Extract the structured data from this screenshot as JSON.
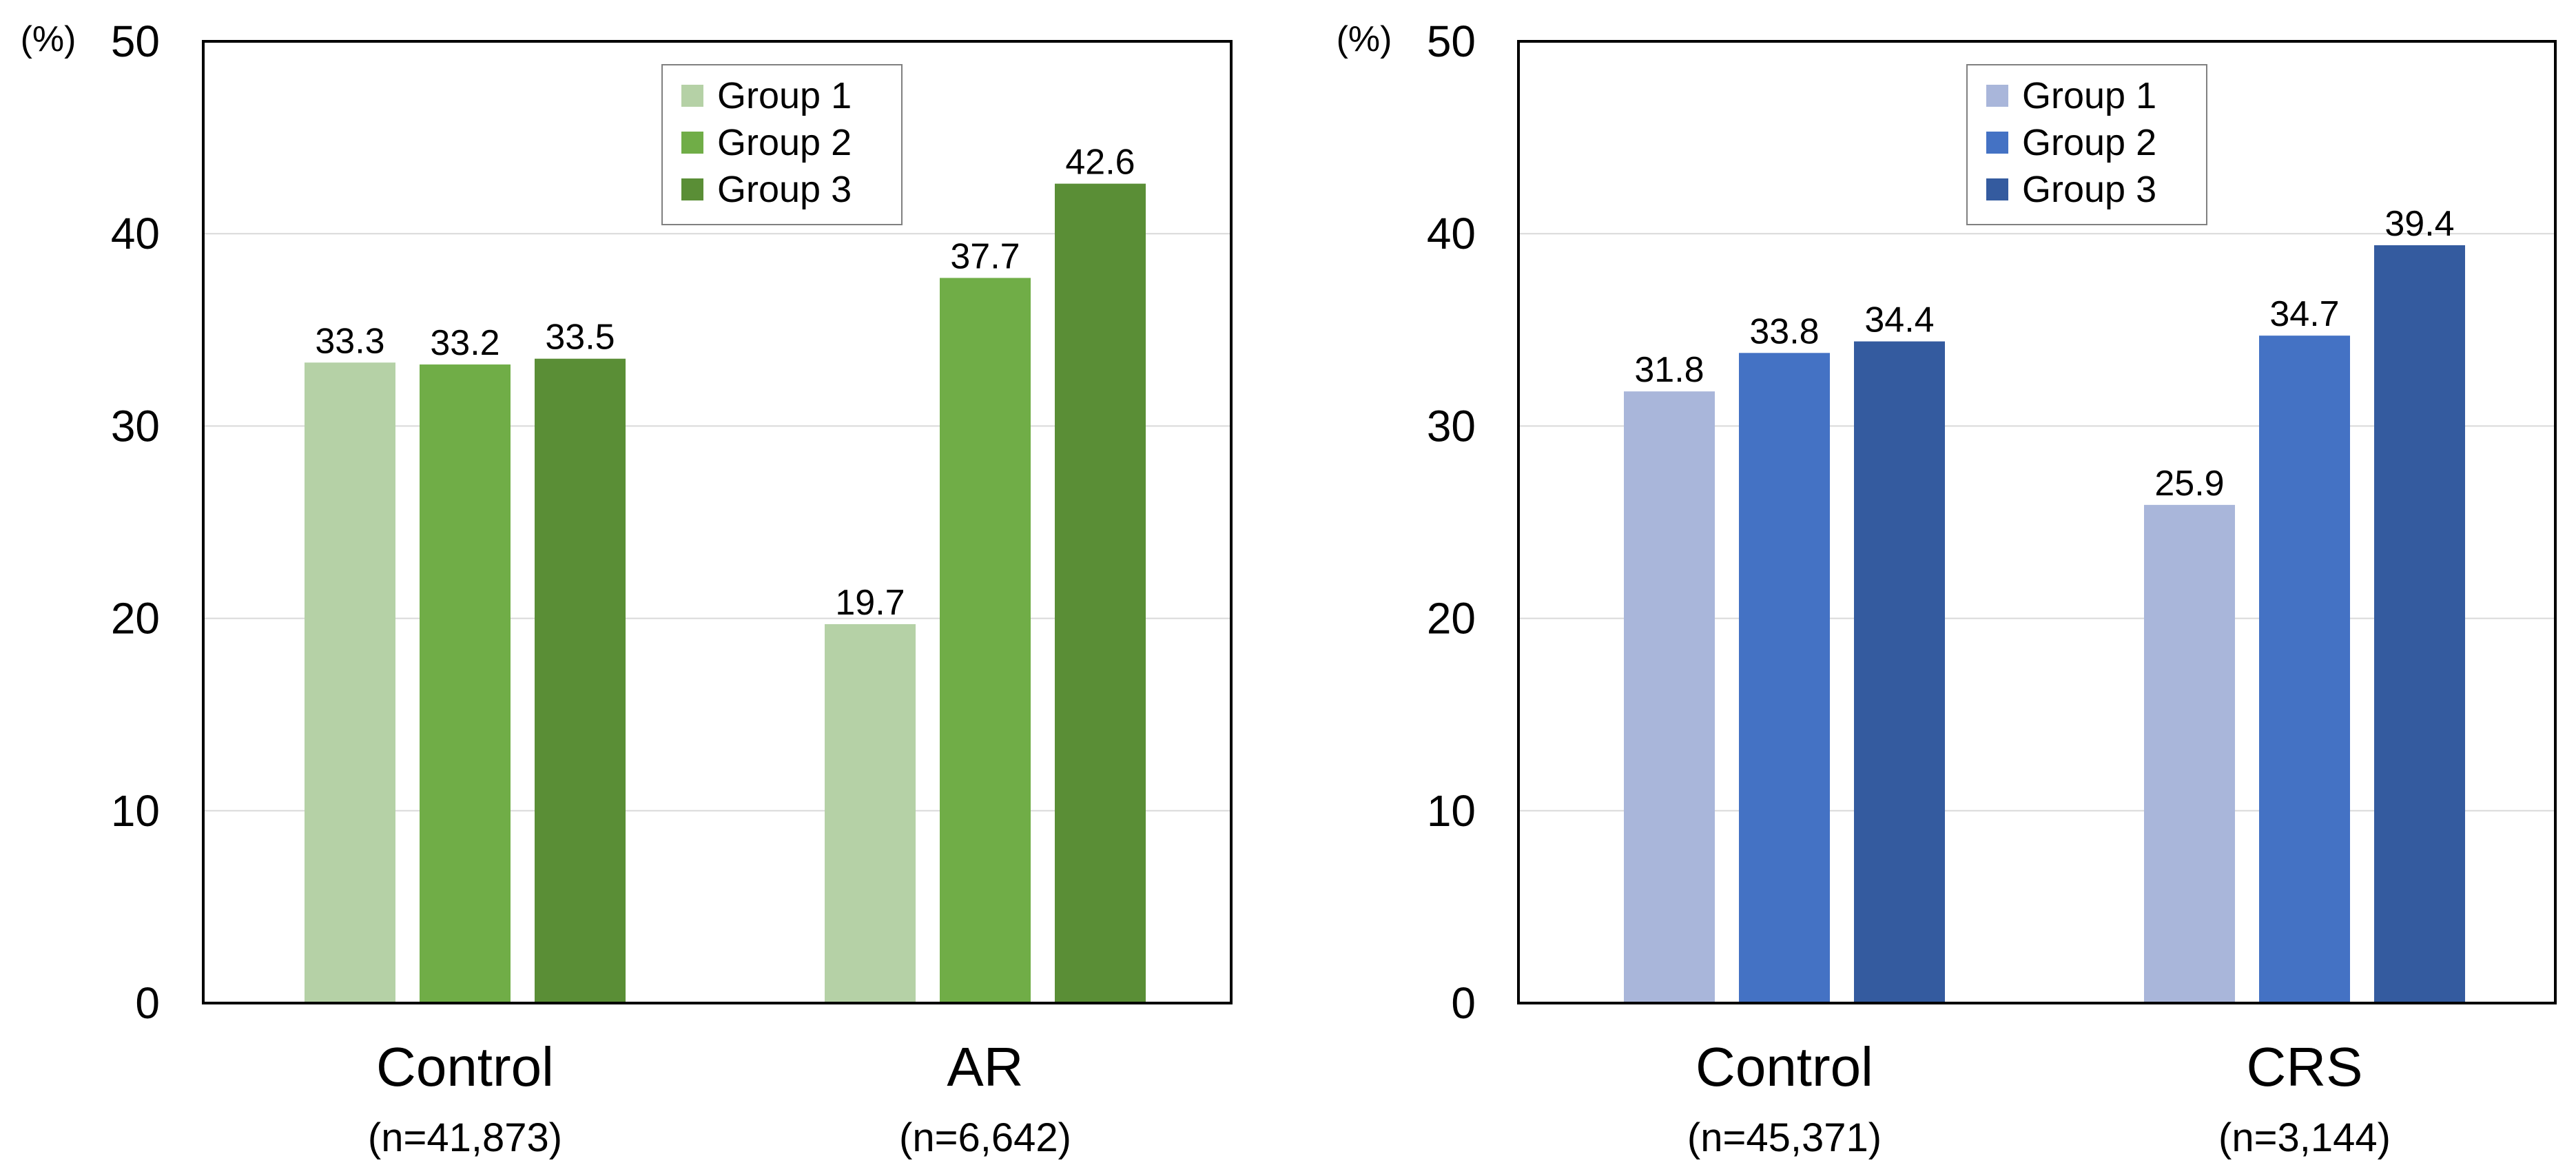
{
  "chart_data": [
    {
      "type": "bar",
      "panel": "left",
      "y_unit_label": "(%)",
      "ylim": [
        0,
        50
      ],
      "y_ticks": [
        0,
        10,
        20,
        30,
        40,
        50
      ],
      "grid": true,
      "legend_position": "top-right",
      "categories": [
        "Control",
        "AR"
      ],
      "category_sublabels": [
        "(n=41,873)",
        "(n=6,642)"
      ],
      "series": [
        {
          "name": "Group 1",
          "color": "#B5D1A6",
          "values": [
            33.3,
            19.7
          ]
        },
        {
          "name": "Group 2",
          "color": "#70AD47",
          "values": [
            33.2,
            37.7
          ]
        },
        {
          "name": "Group 3",
          "color": "#5A8E36",
          "values": [
            33.5,
            42.6
          ]
        }
      ],
      "value_labels": [
        [
          "33.3",
          "19.7"
        ],
        [
          "33.2",
          "37.7"
        ],
        [
          "33.5",
          "42.6"
        ]
      ]
    },
    {
      "type": "bar",
      "panel": "right",
      "y_unit_label": "(%)",
      "ylim": [
        0,
        50
      ],
      "y_ticks": [
        0,
        10,
        20,
        30,
        40,
        50
      ],
      "grid": true,
      "legend_position": "top-right",
      "categories": [
        "Control",
        "CRS"
      ],
      "category_sublabels": [
        "(n=45,371)",
        "(n=3,144)"
      ],
      "series": [
        {
          "name": "Group 1",
          "color": "#A9B6DA",
          "values": [
            31.8,
            25.9
          ]
        },
        {
          "name": "Group 2",
          "color": "#4472C4",
          "values": [
            33.8,
            34.7
          ]
        },
        {
          "name": "Group 3",
          "color": "#345B9F",
          "values": [
            34.4,
            39.4
          ]
        }
      ],
      "value_labels": [
        [
          "31.8",
          "25.9"
        ],
        [
          "33.8",
          "34.7"
        ],
        [
          "34.4",
          "39.4"
        ]
      ]
    }
  ]
}
